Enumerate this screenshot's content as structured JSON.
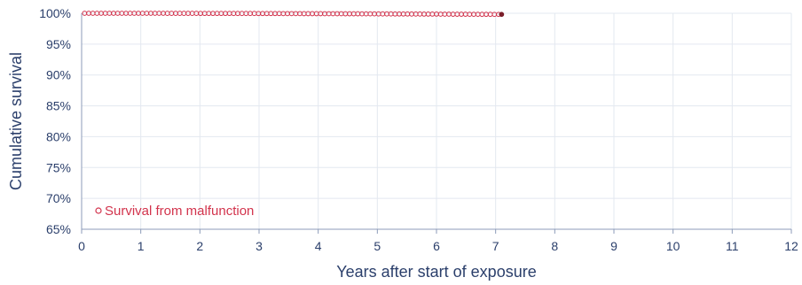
{
  "chart_data": {
    "type": "scatter",
    "xlabel": "Years after start of exposure",
    "ylabel": "Cumulative survival",
    "xlim": [
      0,
      12
    ],
    "ylim": [
      65,
      100
    ],
    "x_ticks": [
      0,
      1,
      2,
      3,
      4,
      5,
      6,
      7,
      8,
      9,
      10,
      11,
      12
    ],
    "y_ticks": [
      65,
      70,
      75,
      80,
      85,
      90,
      95,
      100
    ],
    "x_tick_labels": [
      "0",
      "1",
      "2",
      "3",
      "4",
      "5",
      "6",
      "7",
      "8",
      "9",
      "10",
      "11",
      "12"
    ],
    "y_tick_labels": [
      "65%",
      "70%",
      "75%",
      "80%",
      "85%",
      "90%",
      "95%",
      "100%"
    ],
    "grid": true,
    "legend_position": "bottom-left",
    "series": [
      {
        "name": "Survival from malfunction",
        "marker": "open-circle",
        "color": "#d2334c",
        "end_marker_color": "#7a1f2a",
        "x": [
          0.05,
          0.12,
          0.19,
          0.26,
          0.33,
          0.4,
          0.47,
          0.54,
          0.61,
          0.68,
          0.75,
          0.82,
          0.89,
          0.96,
          1.03,
          1.1,
          1.17,
          1.24,
          1.31,
          1.38,
          1.45,
          1.52,
          1.59,
          1.66,
          1.73,
          1.8,
          1.87,
          1.94,
          2.01,
          2.08,
          2.15,
          2.22,
          2.29,
          2.36,
          2.43,
          2.5,
          2.57,
          2.64,
          2.71,
          2.78,
          2.85,
          2.92,
          2.99,
          3.06,
          3.13,
          3.2,
          3.27,
          3.34,
          3.41,
          3.48,
          3.55,
          3.62,
          3.69,
          3.76,
          3.83,
          3.9,
          3.97,
          4.04,
          4.11,
          4.18,
          4.25,
          4.32,
          4.39,
          4.46,
          4.53,
          4.6,
          4.67,
          4.74,
          4.81,
          4.88,
          4.95,
          5.02,
          5.09,
          5.16,
          5.23,
          5.3,
          5.37,
          5.44,
          5.51,
          5.58,
          5.65,
          5.72,
          5.79,
          5.86,
          5.93,
          6.0,
          6.07,
          6.14,
          6.21,
          6.28,
          6.35,
          6.42,
          6.49,
          6.56,
          6.63,
          6.7,
          6.77,
          6.84,
          6.91,
          6.98,
          7.05,
          7.1
        ],
        "y": [
          100,
          100,
          100,
          100,
          100,
          100,
          100,
          100,
          100,
          100,
          100,
          100,
          100,
          100,
          100,
          100,
          100,
          100,
          100,
          100,
          99.99,
          99.99,
          99.99,
          99.99,
          99.99,
          99.99,
          99.99,
          99.99,
          99.98,
          99.98,
          99.98,
          99.98,
          99.98,
          99.98,
          99.98,
          99.98,
          99.97,
          99.97,
          99.97,
          99.97,
          99.97,
          99.97,
          99.96,
          99.96,
          99.96,
          99.96,
          99.96,
          99.96,
          99.95,
          99.95,
          99.95,
          99.95,
          99.95,
          99.94,
          99.94,
          99.94,
          99.94,
          99.94,
          99.93,
          99.93,
          99.93,
          99.93,
          99.93,
          99.92,
          99.92,
          99.92,
          99.92,
          99.91,
          99.91,
          99.91,
          99.91,
          99.9,
          99.9,
          99.9,
          99.9,
          99.89,
          99.89,
          99.89,
          99.89,
          99.88,
          99.88,
          99.88,
          99.87,
          99.87,
          99.87,
          99.87,
          99.86,
          99.86,
          99.86,
          99.85,
          99.85,
          99.85,
          99.85,
          99.84,
          99.84,
          99.84,
          99.83,
          99.83,
          99.83,
          99.82,
          99.82,
          99.82
        ]
      }
    ]
  },
  "colors": {
    "axis_text": "#2b3f6b",
    "grid": "#e3e8f0",
    "axis_line": "#8c9bb8",
    "legend_text": "#d2334c"
  }
}
